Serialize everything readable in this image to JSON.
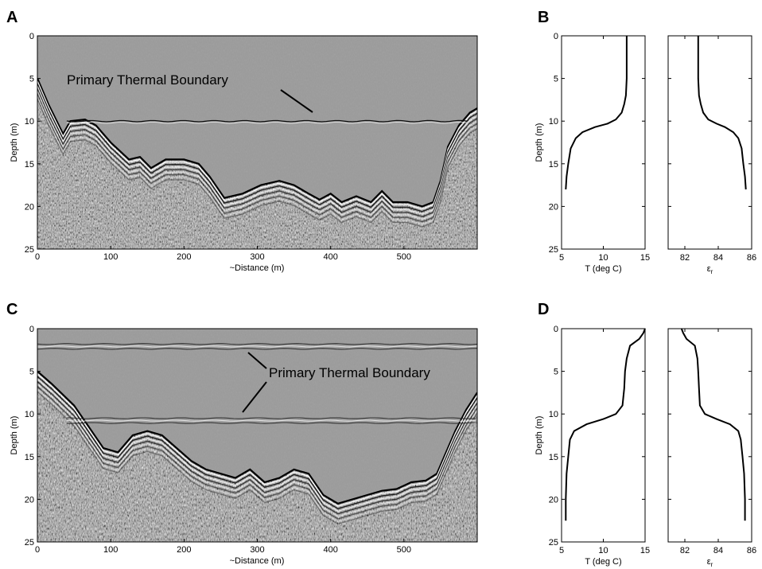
{
  "panels": {
    "a": "A",
    "b": "B",
    "c": "C",
    "d": "D"
  },
  "chart_data": [
    {
      "panel": "A",
      "type": "heatmap",
      "description_visible": "GPR radargram section",
      "xlabel": "~Distance (m)",
      "ylabel": "Depth (m)",
      "xlim": [
        0,
        600
      ],
      "ylim": [
        25,
        0
      ],
      "xticks": [
        0,
        100,
        200,
        300,
        400,
        500
      ],
      "yticks": [
        0,
        5,
        10,
        15,
        20,
        25
      ],
      "annotation": "Primary Thermal Boundary",
      "thermal_boundary_depth": 10,
      "lake_bottom": {
        "x": [
          0,
          15,
          35,
          45,
          65,
          80,
          100,
          125,
          140,
          155,
          175,
          200,
          220,
          235,
          255,
          280,
          305,
          330,
          350,
          370,
          385,
          400,
          415,
          435,
          455,
          470,
          485,
          505,
          525,
          540,
          550,
          560,
          575,
          590,
          600
        ],
        "y": [
          5,
          8,
          11.5,
          10,
          9.8,
          10.5,
          12.5,
          14.5,
          14.2,
          15.5,
          14.5,
          14.5,
          15,
          16.5,
          19,
          18.5,
          17.5,
          17,
          17.5,
          18.5,
          19.2,
          18.5,
          19.5,
          18.8,
          19.5,
          18.2,
          19.5,
          19.5,
          20,
          19.5,
          17,
          13,
          10.5,
          9,
          8.5
        ]
      }
    },
    {
      "panel": "B-left",
      "type": "line",
      "xlabel": "T (deg C)",
      "ylabel": "Depth (m)",
      "xlim": [
        5,
        15
      ],
      "ylim": [
        25,
        0
      ],
      "xticks": [
        5,
        10,
        15
      ],
      "yticks": [
        0,
        5,
        10,
        15,
        20,
        25
      ],
      "x": [
        12.8,
        12.8,
        12.7,
        12.5,
        12.2,
        11.5,
        10.5,
        9.0,
        7.5,
        6.7,
        6.1,
        5.8,
        5.6,
        5.5
      ],
      "y": [
        0,
        5,
        7,
        8,
        9,
        9.8,
        10.3,
        10.7,
        11.3,
        12,
        13.2,
        15,
        16.5,
        18
      ]
    },
    {
      "panel": "B-right",
      "type": "line",
      "xlabel": "ε",
      "xlabel_subscript": "r",
      "xlim": [
        81,
        86
      ],
      "ylim": [
        25,
        0
      ],
      "xticks": [
        82,
        84,
        86
      ],
      "x": [
        82.8,
        82.8,
        82.85,
        82.95,
        83.1,
        83.4,
        83.9,
        84.4,
        84.9,
        85.2,
        85.4,
        85.5,
        85.6,
        85.65
      ],
      "y": [
        0,
        5,
        7,
        8,
        9,
        9.8,
        10.3,
        10.7,
        11.3,
        12,
        13.2,
        15,
        16.5,
        18
      ]
    },
    {
      "panel": "C",
      "type": "heatmap",
      "description_visible": "GPR radargram section",
      "xlabel": "~Distance (m)",
      "ylabel": "Depth (m)",
      "xlim": [
        0,
        600
      ],
      "ylim": [
        25,
        0
      ],
      "xticks": [
        0,
        100,
        200,
        300,
        400,
        500
      ],
      "yticks": [
        0,
        5,
        10,
        15,
        20,
        25
      ],
      "annotation": "Primary Thermal Boundary",
      "thermal_boundary_depths": [
        1.8,
        10.5
      ],
      "lake_bottom": {
        "x": [
          0,
          20,
          50,
          70,
          90,
          110,
          130,
          150,
          170,
          190,
          210,
          230,
          250,
          270,
          290,
          310,
          330,
          350,
          370,
          390,
          410,
          430,
          450,
          470,
          490,
          510,
          530,
          545,
          555,
          570,
          585,
          600
        ],
        "y": [
          5,
          6.5,
          9,
          11.5,
          14,
          14.5,
          12.5,
          12,
          12.5,
          14,
          15.5,
          16.5,
          17,
          17.5,
          16.5,
          18,
          17.5,
          16.5,
          17,
          19.5,
          20.5,
          20,
          19.5,
          19,
          18.8,
          18,
          17.8,
          17,
          15,
          12,
          9.5,
          7.5
        ]
      }
    },
    {
      "panel": "D-left",
      "type": "line",
      "xlabel": "T (deg C)",
      "ylabel": "Depth (m)",
      "xlim": [
        5,
        15
      ],
      "ylim": [
        25,
        0
      ],
      "xticks": [
        5,
        10,
        15
      ],
      "yticks": [
        0,
        5,
        10,
        15,
        20,
        25
      ],
      "x": [
        15.0,
        14.8,
        14.3,
        13.2,
        12.8,
        12.6,
        12.5,
        12.3,
        11.5,
        10.0,
        8.0,
        6.5,
        6.0,
        5.8,
        5.6,
        5.5,
        5.5
      ],
      "y": [
        0,
        0.5,
        1.2,
        2,
        3.5,
        5,
        7,
        9,
        10,
        10.6,
        11.2,
        12,
        13,
        15,
        17,
        20,
        22.5
      ]
    },
    {
      "panel": "D-right",
      "type": "line",
      "xlabel": "ε",
      "xlabel_subscript": "r",
      "xlim": [
        81,
        86
      ],
      "ylim": [
        25,
        0
      ],
      "xticks": [
        82,
        84,
        86
      ],
      "x": [
        81.8,
        81.9,
        82.1,
        82.6,
        82.75,
        82.8,
        82.85,
        82.9,
        83.2,
        83.9,
        84.7,
        85.2,
        85.35,
        85.45,
        85.55,
        85.6,
        85.6
      ],
      "y": [
        0,
        0.5,
        1.2,
        2,
        3.5,
        5,
        7,
        9,
        10,
        10.6,
        11.2,
        12,
        13,
        15,
        17,
        20,
        22.5
      ]
    }
  ]
}
